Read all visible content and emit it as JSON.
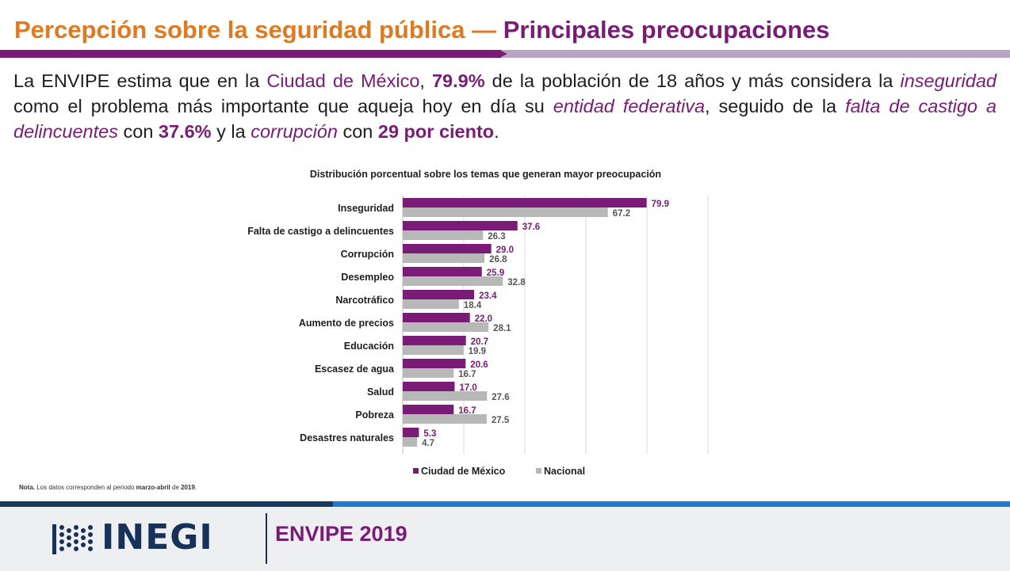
{
  "header": {
    "title_part1": "Percepción sobre la seguridad pública — ",
    "title_part2": "Principales preocupaciones"
  },
  "intro": {
    "t1": "La ENVIPE estima que en la ",
    "t2": "Ciudad de México",
    "t3": ", ",
    "t4": "79.9%",
    "t5": " de la población de 18 años y más considera la ",
    "t6": "inseguridad",
    "t7": " como el problema más importante que aqueja hoy en día su ",
    "t8": "entidad federativa",
    "t9": ", seguido de la ",
    "t10": "falta de castigo a delincuentes",
    "t11": " con ",
    "t12": "37.6%",
    "t13": " y la ",
    "t14": "corrupción",
    "t15": " con ",
    "t16": "29 por ciento",
    "t17": "."
  },
  "chart_data": {
    "type": "bar",
    "orientation": "horizontal",
    "title": "Distribución porcentual sobre los temas que generan mayor preocupación",
    "categories": [
      "Inseguridad",
      "Falta de castigo a delincuentes",
      "Corrupción",
      "Desempleo",
      "Narcotráfico",
      "Aumento de precios",
      "Educación",
      "Escasez de agua",
      "Salud",
      "Pobreza",
      "Desastres naturales"
    ],
    "series": [
      {
        "name": "Ciudad de México",
        "color": "#7a1b78",
        "values": [
          79.9,
          37.6,
          29.0,
          25.9,
          23.4,
          22.0,
          20.7,
          20.6,
          17.0,
          16.7,
          5.3
        ]
      },
      {
        "name": "Nacional",
        "color": "#b8b8b8",
        "values": [
          67.2,
          26.3,
          26.8,
          32.8,
          18.4,
          28.1,
          19.9,
          16.7,
          27.6,
          27.5,
          4.7
        ]
      }
    ],
    "xlim": [
      0,
      100
    ],
    "grid": true,
    "legend": "bottom"
  },
  "note": {
    "label": "Nota.",
    "text_a": " Los datos corresponden al periodo ",
    "period": "marzo-abril",
    "text_b": " de ",
    "year": "2019",
    "end": "."
  },
  "footer": {
    "logo_text": "INEGI",
    "survey": "ENVIPE 2019"
  }
}
